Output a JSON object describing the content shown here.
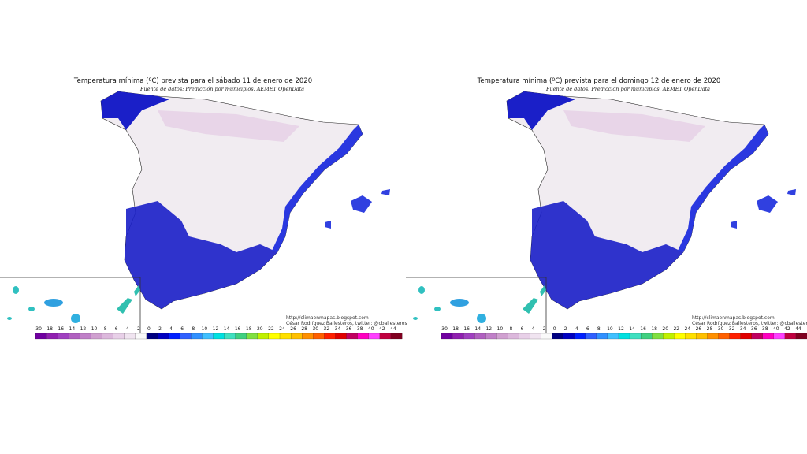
{
  "maps": [
    {
      "title": "Temperatura mínima (ºC) prevista para el sábado 11 de enero de 2020",
      "subtitle": "Fuente de datos: Predicción por municipios. AEMET OpenData",
      "credit_url": "http://climaenmapas.blogspot.com",
      "credit_author": "César Rodríguez Ballesteros, twitter: @cballesteros",
      "legend": [
        -30,
        -18,
        -16,
        -14,
        -12,
        -10,
        -8,
        -6,
        -4,
        -2,
        0,
        2,
        4,
        6,
        8,
        10,
        12,
        14,
        16,
        18,
        20,
        22,
        24,
        26,
        28,
        30,
        32,
        34,
        36,
        38,
        40,
        42,
        44
      ]
    },
    {
      "title": "Temperatura mínima (ºC) prevista para el domingo 12 de enero de 2020",
      "subtitle": "Fuente de datos: Predicción por municipios. AEMET OpenData",
      "credit_url": "http://climaenmapas.blogspot.com",
      "credit_author": "César Rodríguez Ballesteros, twitter: @cballesteros",
      "legend": [
        -30,
        -18,
        -16,
        -14,
        -12,
        -10,
        -8,
        -6,
        -4,
        -2,
        0,
        2,
        4,
        6,
        8,
        10,
        12,
        14,
        16,
        18,
        20,
        22,
        24,
        26,
        28,
        30,
        32,
        34,
        36,
        38,
        40,
        42,
        44
      ]
    }
  ]
}
